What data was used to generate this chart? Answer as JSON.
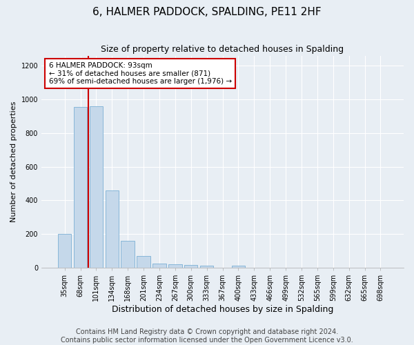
{
  "title": "6, HALMER PADDOCK, SPALDING, PE11 2HF",
  "subtitle": "Size of property relative to detached houses in Spalding",
  "xlabel": "Distribution of detached houses by size in Spalding",
  "ylabel": "Number of detached properties",
  "categories": [
    "35sqm",
    "68sqm",
    "101sqm",
    "134sqm",
    "168sqm",
    "201sqm",
    "234sqm",
    "267sqm",
    "300sqm",
    "333sqm",
    "367sqm",
    "400sqm",
    "433sqm",
    "466sqm",
    "499sqm",
    "532sqm",
    "565sqm",
    "599sqm",
    "632sqm",
    "665sqm",
    "698sqm"
  ],
  "values": [
    200,
    955,
    960,
    460,
    160,
    68,
    25,
    20,
    18,
    12,
    0,
    12,
    0,
    0,
    0,
    0,
    0,
    0,
    0,
    0,
    0
  ],
  "bar_color": "#c5d8ea",
  "bar_edge_color": "#7bafd4",
  "annotation_box_text": "6 HALMER PADDOCK: 93sqm\n← 31% of detached houses are smaller (871)\n69% of semi-detached houses are larger (1,976) →",
  "annotation_box_color": "white",
  "annotation_box_edge_color": "#cc0000",
  "vline_x_index": 1.5,
  "vline_color": "#cc0000",
  "ylim": [
    0,
    1260
  ],
  "yticks": [
    0,
    200,
    400,
    600,
    800,
    1000,
    1200
  ],
  "background_color": "#e8eef4",
  "footer": "Contains HM Land Registry data © Crown copyright and database right 2024.\nContains public sector information licensed under the Open Government Licence v3.0.",
  "title_fontsize": 11,
  "xlabel_fontsize": 9,
  "ylabel_fontsize": 8,
  "footer_fontsize": 7,
  "tick_fontsize": 7,
  "annot_fontsize": 7.5
}
